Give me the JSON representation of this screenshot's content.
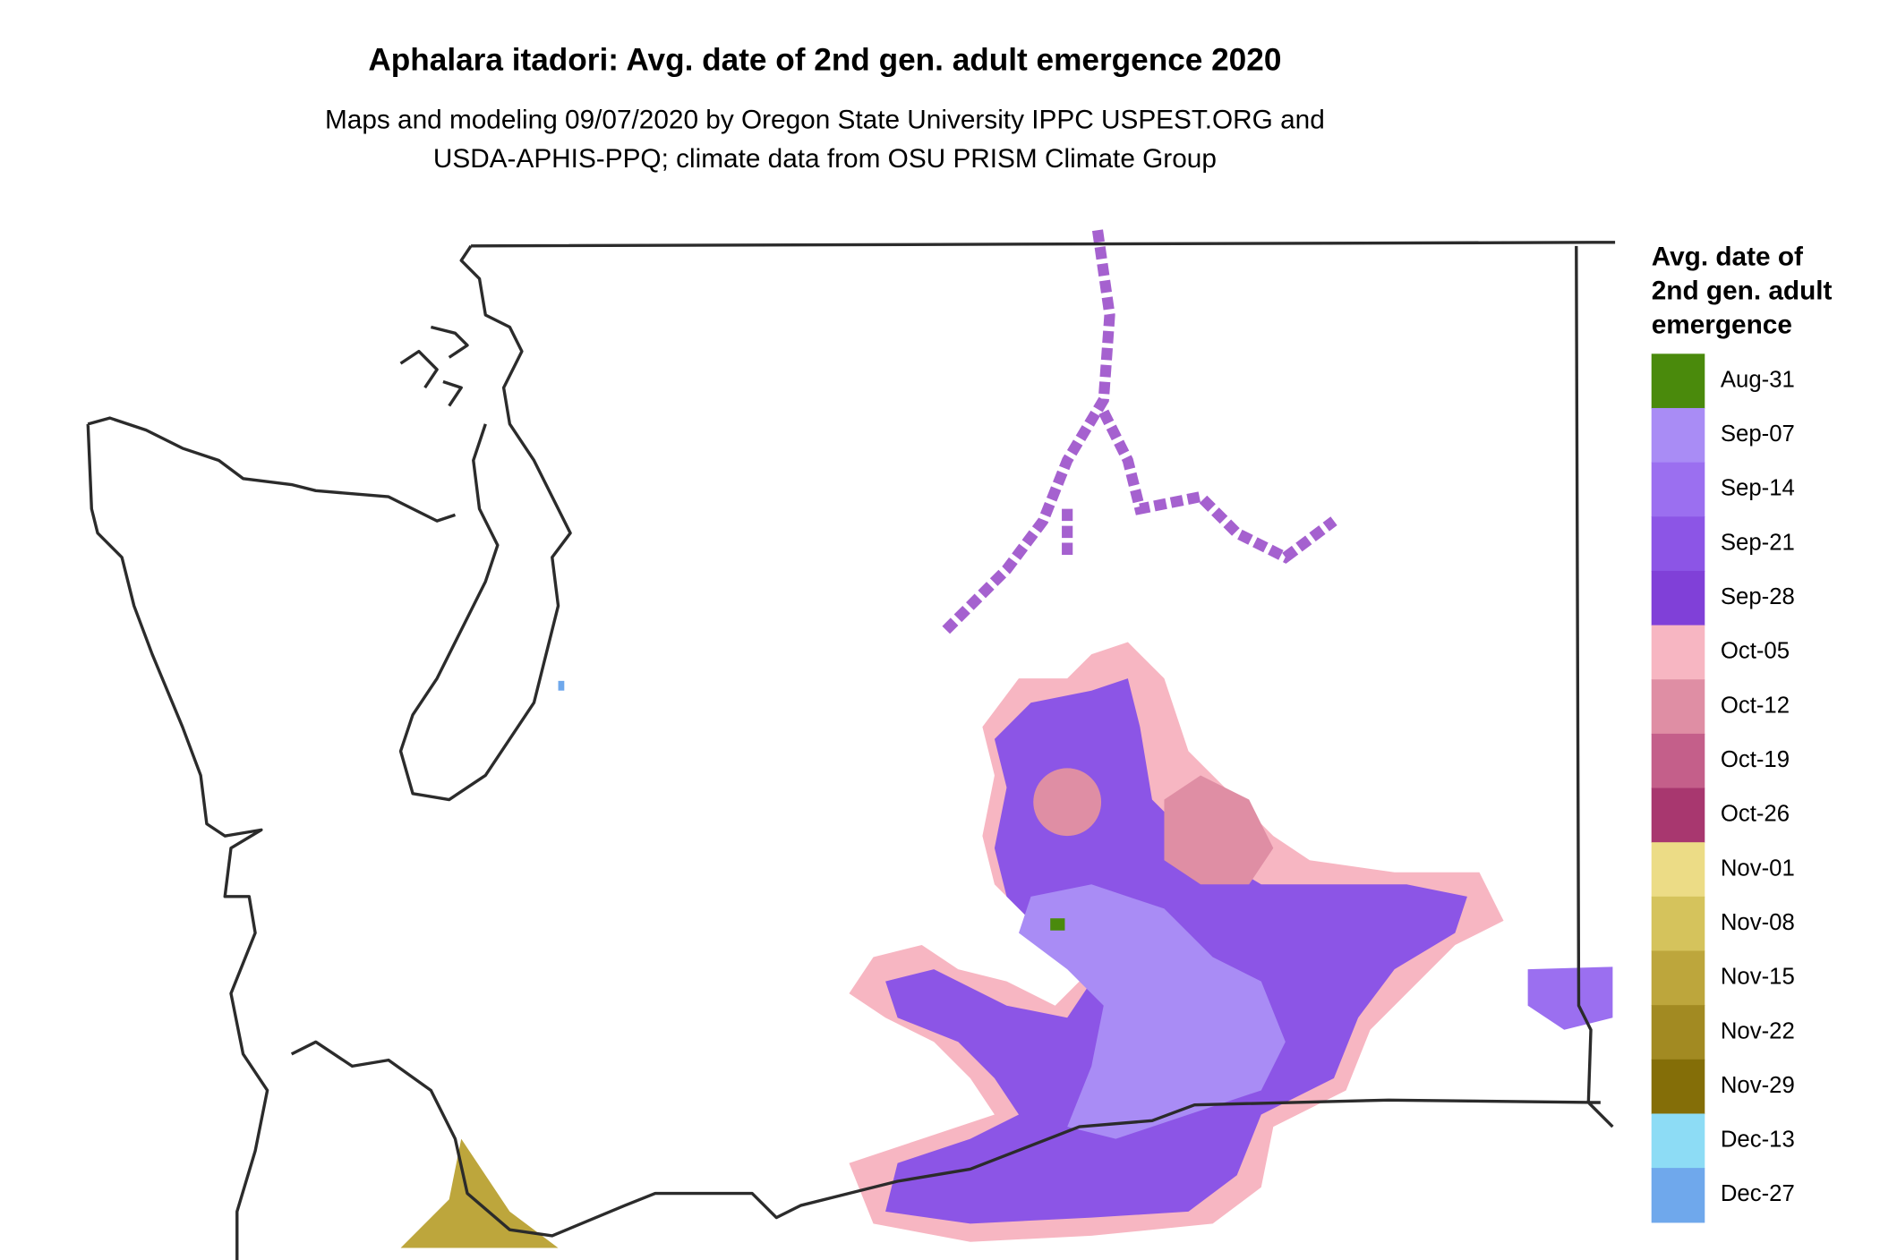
{
  "title": "Aphalara itadori: Avg. date of 2nd gen. adult emergence 2020",
  "subtitle": [
    "Maps and modeling 09/07/2020 by Oregon State University IPPC USPEST.ORG and",
    "USDA-APHIS-PPQ; climate data from OSU PRISM Climate Group"
  ],
  "legend": {
    "title": [
      "Avg. date of",
      "2nd gen. adult",
      "emergence"
    ],
    "items": [
      {
        "label": "Aug-31",
        "color": "#4a8a0c"
      },
      {
        "label": "Sep-07",
        "color": "#a98cf5"
      },
      {
        "label": "Sep-14",
        "color": "#9b6ff0"
      },
      {
        "label": "Sep-21",
        "color": "#8c55e6"
      },
      {
        "label": "Sep-28",
        "color": "#8040d8"
      },
      {
        "label": "Oct-05",
        "color": "#f7b6c2"
      },
      {
        "label": "Oct-12",
        "color": "#df8ea4"
      },
      {
        "label": "Oct-19",
        "color": "#c45f8a"
      },
      {
        "label": "Oct-26",
        "color": "#a8376f"
      },
      {
        "label": "Nov-01",
        "color": "#ecdc86"
      },
      {
        "label": "Nov-08",
        "color": "#d5c35c"
      },
      {
        "label": "Nov-15",
        "color": "#bda63c"
      },
      {
        "label": "Nov-22",
        "color": "#a28a22"
      },
      {
        "label": "Nov-29",
        "color": "#846e08"
      },
      {
        "label": "Dec-13",
        "color": "#8ddcf5"
      },
      {
        "label": "Dec-27",
        "color": "#6fa8ec"
      }
    ]
  }
}
